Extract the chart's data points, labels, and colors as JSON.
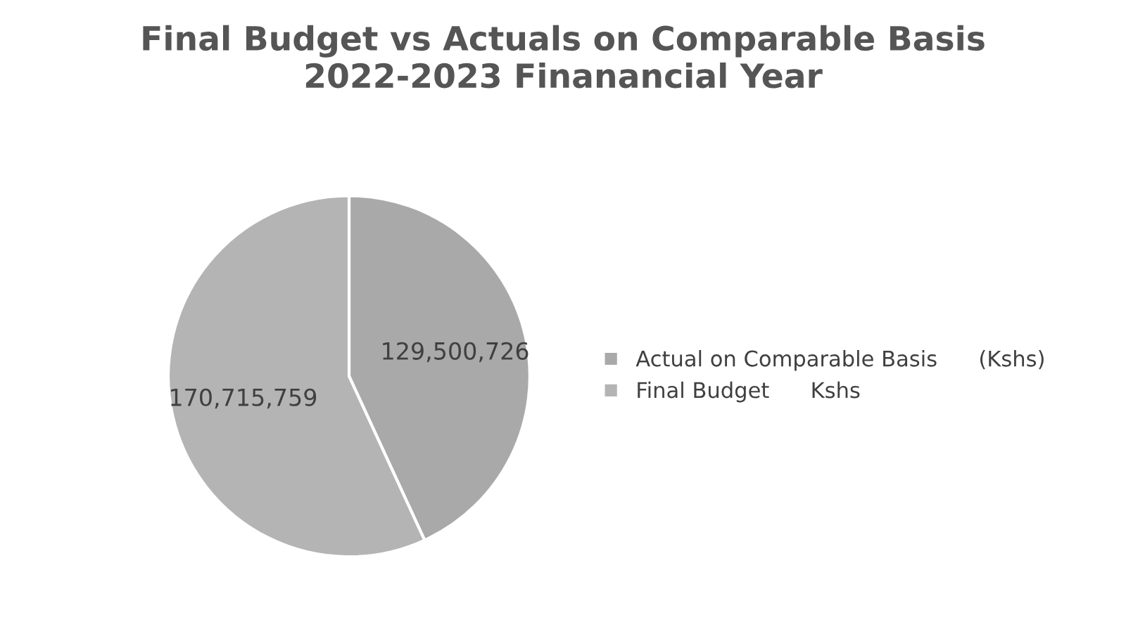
{
  "chart_data": {
    "type": "pie",
    "title": "Final Budget vs Actuals on Comparable Basis\n2022-2023 Finanancial Year",
    "categories": [
      "Actual on Comparable Basis      (Kshs)",
      "Final Budget      Kshs"
    ],
    "values": [
      129500726,
      170715759
    ],
    "colors": [
      "#a9a9a9",
      "#b4b4b4"
    ],
    "value_labels": [
      "129,500,726",
      "170,715,759"
    ],
    "legend": "right"
  }
}
